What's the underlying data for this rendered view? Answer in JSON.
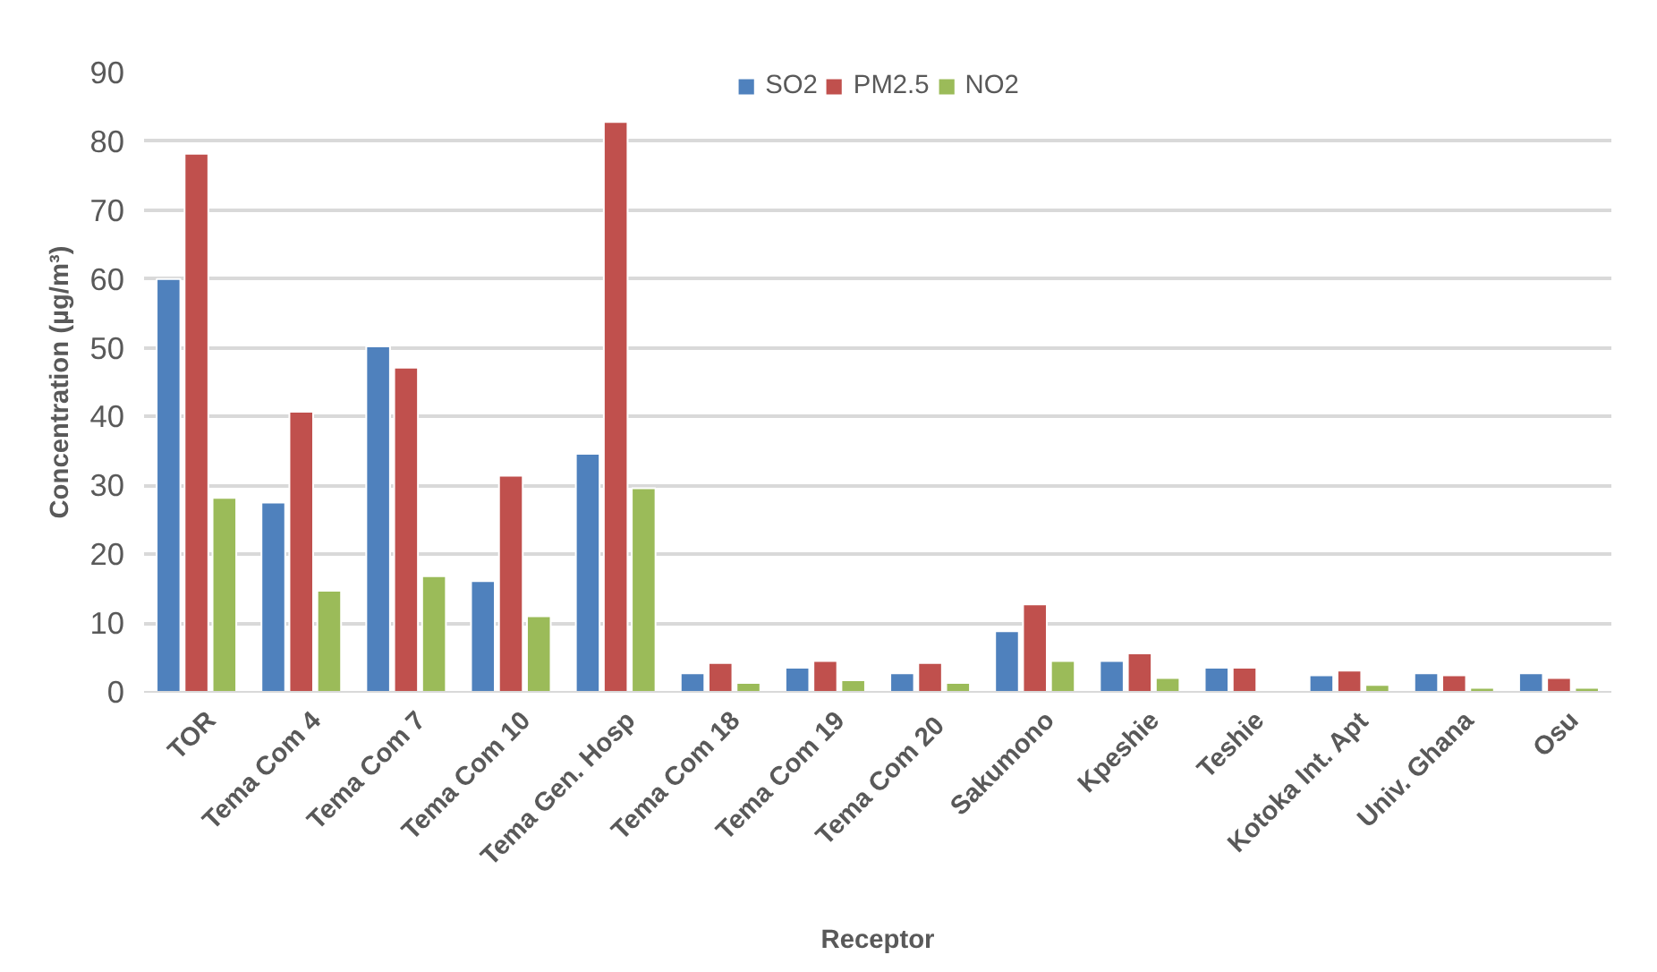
{
  "chart_data": {
    "type": "bar",
    "xlabel": "Receptor",
    "ylabel": "Concentration (µg/m³)",
    "categories": [
      "TOR",
      "Tema Com 4",
      "Tema Com 7",
      "Tema Com 10",
      "Tema Gen. Hosp",
      "Tema Com 18",
      "Tema Com 19",
      "Tema Com  20",
      "Sakumono",
      "Kpeshie",
      "Teshie",
      "Kotoka Int. Apt",
      "Univ. Ghana",
      "Osu"
    ],
    "series": [
      {
        "name": "SO2",
        "color": "#4f81bd",
        "values": [
          60,
          27.5,
          50.2,
          16.1,
          34.6,
          2.7,
          3.5,
          2.7,
          8.8,
          4.5,
          3.5,
          2.4,
          2.7,
          2.7
        ]
      },
      {
        "name": "PM2.5",
        "color": "#c0504d",
        "values": [
          78.2,
          40.7,
          47.1,
          31.4,
          82.8,
          4.2,
          4.5,
          4.2,
          12.7,
          5.6,
          3.5,
          3.1,
          2.4,
          2.0
        ]
      },
      {
        "name": "NO2",
        "color": "#9bbb59",
        "values": [
          28.2,
          14.7,
          16.8,
          11,
          29.6,
          1.3,
          1.7,
          1.3,
          4.5,
          2.0,
          null,
          1.0,
          0.6,
          0.6
        ]
      }
    ],
    "ylim": [
      0,
      90
    ],
    "yticks": [
      0,
      10,
      20,
      30,
      40,
      50,
      60,
      70,
      80,
      90
    ],
    "grid": "y",
    "legend": "top"
  }
}
